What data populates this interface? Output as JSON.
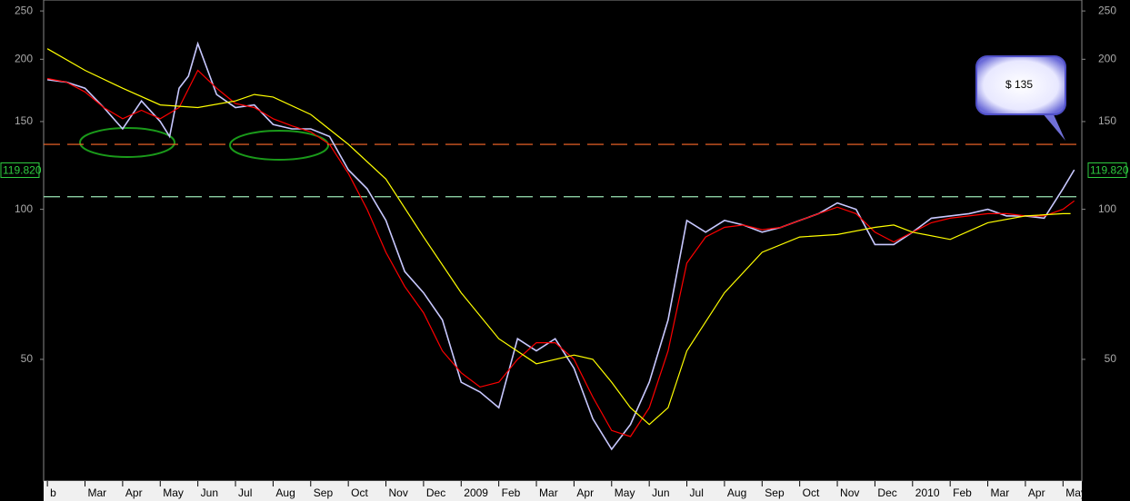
{
  "chart_data": {
    "type": "line",
    "log_scale": true,
    "ylim": [
      28.5,
      263
    ],
    "yticks": [
      50,
      100,
      150,
      200,
      250
    ],
    "xlim": [
      -0.1,
      27.5
    ],
    "xticks": [
      {
        "value": 0,
        "label": "b"
      },
      {
        "value": 1,
        "label": "Mar"
      },
      {
        "value": 2,
        "label": "Apr"
      },
      {
        "value": 3,
        "label": "May"
      },
      {
        "value": 4,
        "label": "Jun"
      },
      {
        "value": 5,
        "label": "Jul"
      },
      {
        "value": 6,
        "label": "Aug"
      },
      {
        "value": 7,
        "label": "Sep"
      },
      {
        "value": 8,
        "label": "Oct"
      },
      {
        "value": 9,
        "label": "Nov"
      },
      {
        "value": 10,
        "label": "Dec"
      },
      {
        "value": 11,
        "label": "2009"
      },
      {
        "value": 12,
        "label": "Feb"
      },
      {
        "value": 13,
        "label": "Mar"
      },
      {
        "value": 14,
        "label": "Apr"
      },
      {
        "value": 15,
        "label": "May"
      },
      {
        "value": 16,
        "label": "Jun"
      },
      {
        "value": 17,
        "label": "Jul"
      },
      {
        "value": 18,
        "label": "Aug"
      },
      {
        "value": 19,
        "label": "Sep"
      },
      {
        "value": 20,
        "label": "Oct"
      },
      {
        "value": 21,
        "label": "Nov"
      },
      {
        "value": 22,
        "label": "Dec"
      },
      {
        "value": 23,
        "label": "2010"
      },
      {
        "value": 24,
        "label": "Feb"
      },
      {
        "value": 25,
        "label": "Mar"
      },
      {
        "value": 26,
        "label": "Apr"
      },
      {
        "value": 27,
        "label": "May"
      }
    ],
    "series": [
      {
        "color": "#c8c8ff",
        "x": [
          0,
          0.5,
          1,
          1.5,
          2,
          2.5,
          3,
          3.25,
          3.5,
          3.75,
          4,
          4.5,
          5,
          5.5,
          6,
          6.5,
          7,
          7.5,
          8,
          8.5,
          9,
          9.5,
          10,
          10.5,
          11,
          11.5,
          12,
          12.5,
          13,
          13.5,
          14,
          14.5,
          15,
          15.5,
          16,
          16.5,
          17,
          17.5,
          18,
          18.5,
          19,
          19.5,
          20,
          20.5,
          21,
          21.5,
          22,
          22.5,
          23,
          23.5,
          24,
          24.5,
          25,
          25.5,
          26,
          26.5,
          27,
          27.3
        ],
        "values": [
          182,
          180,
          175,
          160,
          145,
          165,
          150,
          140,
          175,
          185,
          215,
          170,
          160,
          162,
          148,
          145,
          145,
          140,
          120,
          110,
          95,
          75,
          68,
          60,
          45,
          43,
          40,
          55,
          52,
          55,
          48,
          38,
          33,
          37,
          45,
          60,
          95,
          90,
          95,
          93,
          90,
          92,
          95,
          98,
          103,
          100,
          85,
          85,
          90,
          96,
          97,
          98,
          100,
          97,
          97,
          96,
          110,
          120
        ]
      },
      {
        "color": "#ff0000",
        "x": [
          0,
          0.5,
          1,
          1.5,
          2,
          2.5,
          3,
          3.5,
          4,
          4.5,
          5,
          5.5,
          6,
          6.5,
          7,
          7.5,
          8,
          8.5,
          9,
          9.5,
          10,
          10.5,
          11,
          11.5,
          12,
          12.5,
          13,
          13.5,
          14,
          14.5,
          15,
          15.5,
          16,
          16.5,
          17,
          17.5,
          18,
          18.5,
          19,
          19.5,
          20,
          20.5,
          21,
          21.5,
          22,
          22.5,
          23,
          23.5,
          24,
          24.5,
          25,
          25.5,
          26,
          26.5,
          27,
          27.3
        ],
        "values": [
          183,
          180,
          172,
          160,
          152,
          158,
          152,
          160,
          190,
          175,
          163,
          160,
          152,
          147,
          143,
          135,
          118,
          100,
          82,
          70,
          62,
          52,
          47,
          44,
          45,
          50,
          54,
          54,
          50,
          42,
          36,
          35,
          40,
          52,
          78,
          88,
          92,
          93,
          91,
          92,
          95,
          98,
          101,
          98,
          90,
          86,
          90,
          94,
          96,
          97,
          98,
          98,
          97,
          97,
          100,
          104
        ]
      },
      {
        "color": "#ffff00",
        "x": [
          0,
          1,
          2,
          3,
          4,
          5,
          5.5,
          6,
          7,
          8,
          9,
          10,
          11,
          12,
          13,
          14,
          14.5,
          15,
          15.5,
          16,
          16.5,
          17,
          18,
          19,
          20,
          21,
          22,
          22.5,
          23,
          24,
          25,
          26,
          27,
          27.2
        ],
        "values": [
          210,
          190,
          175,
          162,
          160,
          165,
          170,
          168,
          155,
          135,
          115,
          88,
          68,
          55,
          49,
          51,
          50,
          45,
          40,
          37,
          40,
          52,
          68,
          82,
          88,
          89,
          92,
          93,
          90,
          87,
          94,
          97,
          98,
          98
        ]
      }
    ],
    "hlines": [
      {
        "value": 135,
        "color": "#ff6a2a"
      },
      {
        "value": 106,
        "color": "#9ce6b4"
      }
    ],
    "last_price": {
      "value": 119.82,
      "label": "119.820"
    },
    "annotation": "$ 135"
  }
}
